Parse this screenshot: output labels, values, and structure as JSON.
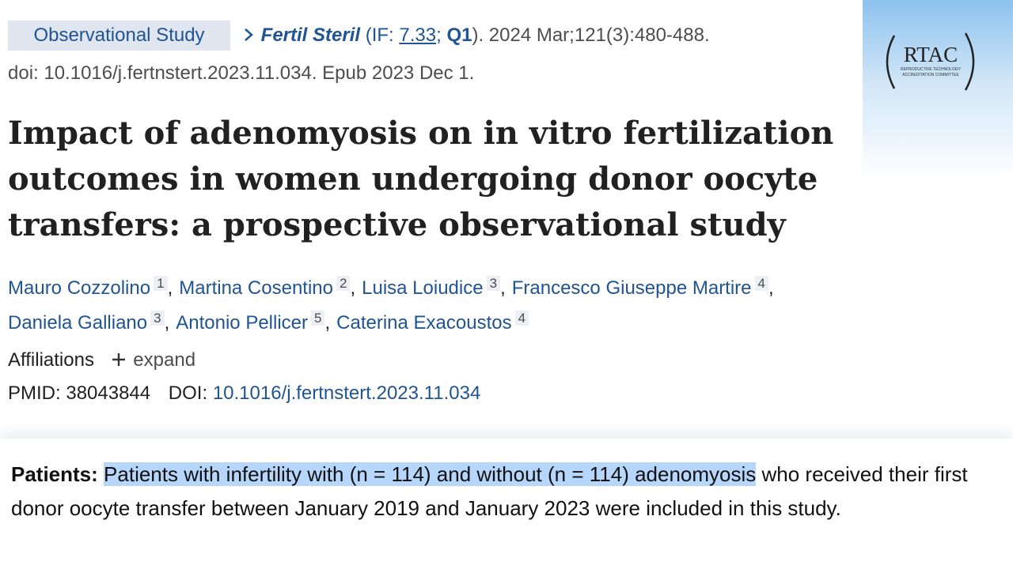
{
  "header": {
    "badge": "Observational Study",
    "journal": "Fertil Steril",
    "if_open": "(IF: ",
    "impact_factor": "7.33",
    "if_sep": "; ",
    "quartile": "Q1",
    "citation": "). 2024 Mar;121(3):480-488.",
    "doi_line": "doi: 10.1016/j.fertnstert.2023.11.034. Epub 2023 Dec 1."
  },
  "logo": {
    "name": "RTAC",
    "line1": "REPRODUCTIVE TECHNOLOGY",
    "line2": "ACCREDITATION COMMITTEE"
  },
  "title": {
    "lines": [
      "Impact of adenomyosis on in vitro fertilization",
      "outcomes in women undergoing donor oocyte",
      "transfers: a prospective observational study"
    ]
  },
  "authors": {
    "separator": ",",
    "list": [
      {
        "name": "Mauro Cozzolino",
        "affiliation": "1"
      },
      {
        "name": "Martina Cosentino",
        "affiliation": "2"
      },
      {
        "name": "Luisa Loiudice",
        "affiliation": "3"
      },
      {
        "name": "Francesco Giuseppe Martire",
        "affiliation": "4"
      },
      {
        "name": "Daniela Galliano",
        "affiliation": "3"
      },
      {
        "name": "Antonio Pellicer",
        "affiliation": "5"
      },
      {
        "name": "Caterina Exacoustos",
        "affiliation": "4"
      }
    ]
  },
  "affiliations": {
    "label": "Affiliations",
    "action": "expand"
  },
  "ids": {
    "pmid_label": "PMID:",
    "pmid": "38043844",
    "doi_label": "DOI:",
    "doi": "10.1016/j.fertnstert.2023.11.034"
  },
  "patients": {
    "label": "Patients:",
    "highlighted": "Patients with infertility with (n = 114) and without (n = 114) adenomyosis",
    "rest": " who received their first donor oocyte transfer between January 2019 and January 2023 were included in this study."
  }
}
